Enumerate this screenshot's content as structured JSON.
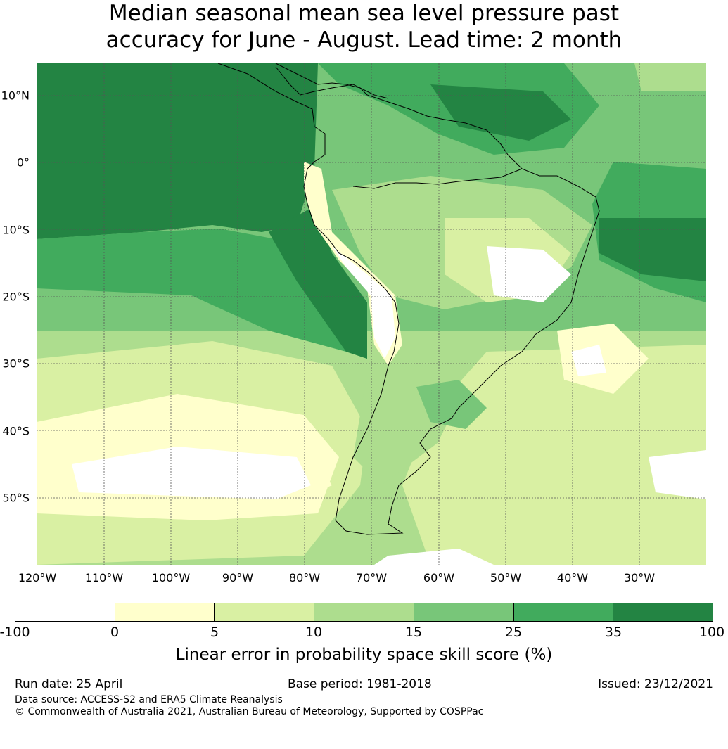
{
  "title": {
    "line1": "Median seasonal mean sea level pressure past",
    "line2": "accuracy for June - August. Lead time: 2 month"
  },
  "map": {
    "lat_labels": [
      "10°N",
      "0°",
      "10°S",
      "20°S",
      "30°S",
      "40°S",
      "50°S"
    ],
    "lon_labels": [
      "120°W",
      "110°W",
      "100°W",
      "90°W",
      "80°W",
      "70°W",
      "60°W",
      "50°W",
      "40°W",
      "30°W"
    ],
    "colors": {
      "class_0": "#ffffff",
      "class_1": "#ffffcc",
      "class_2": "#d9f0a3",
      "class_3": "#addd8e",
      "class_4": "#78c679",
      "class_5": "#41ab5d",
      "class_6": "#238443",
      "coastline": "#000000",
      "gridline": "#555555"
    }
  },
  "colorbar": {
    "ticks": [
      "-100",
      "0",
      "5",
      "10",
      "15",
      "25",
      "35",
      "100"
    ],
    "colors": [
      "#ffffff",
      "#ffffcc",
      "#d9f0a3",
      "#addd8e",
      "#78c679",
      "#41ab5d",
      "#238443"
    ],
    "label": "Linear error in probability space skill score (%)"
  },
  "footer": {
    "run_date": "Run date: 25 April",
    "base_period": "Base period: 1981-2018",
    "issued": "Issued: 23/12/2021",
    "data_source": "Data source: ACCESS-S2 and ERA5 Climate Reanalysis",
    "copyright": "© Commonwealth of Australia 2021, Australian Bureau of Meteorology, Supported by COSPPac"
  }
}
